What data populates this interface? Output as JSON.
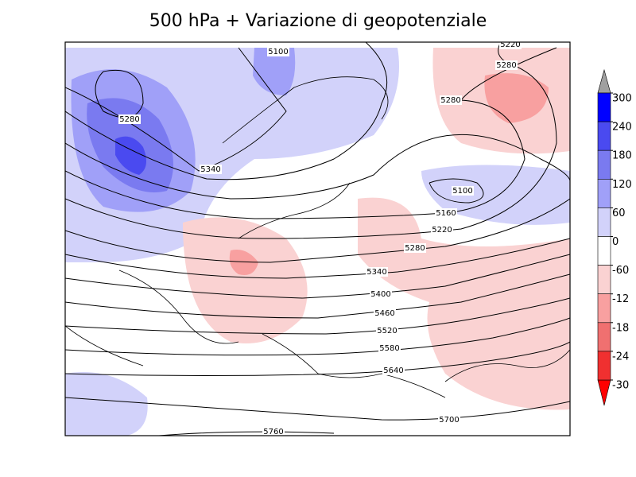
{
  "title": "500 hPa + Variazione di geopotenziale",
  "contour_labels": [
    "5100",
    "5220",
    "5280",
    "5280",
    "5280",
    "5340",
    "5100",
    "5160",
    "5220",
    "5280",
    "5340",
    "5400",
    "5460",
    "5520",
    "5580",
    "5640",
    "5700",
    "5760"
  ],
  "colorbar_labels": [
    "300",
    "240",
    "180",
    "120",
    "60",
    "0",
    "-60",
    "-12",
    "-18",
    "-24",
    "-30"
  ]
}
